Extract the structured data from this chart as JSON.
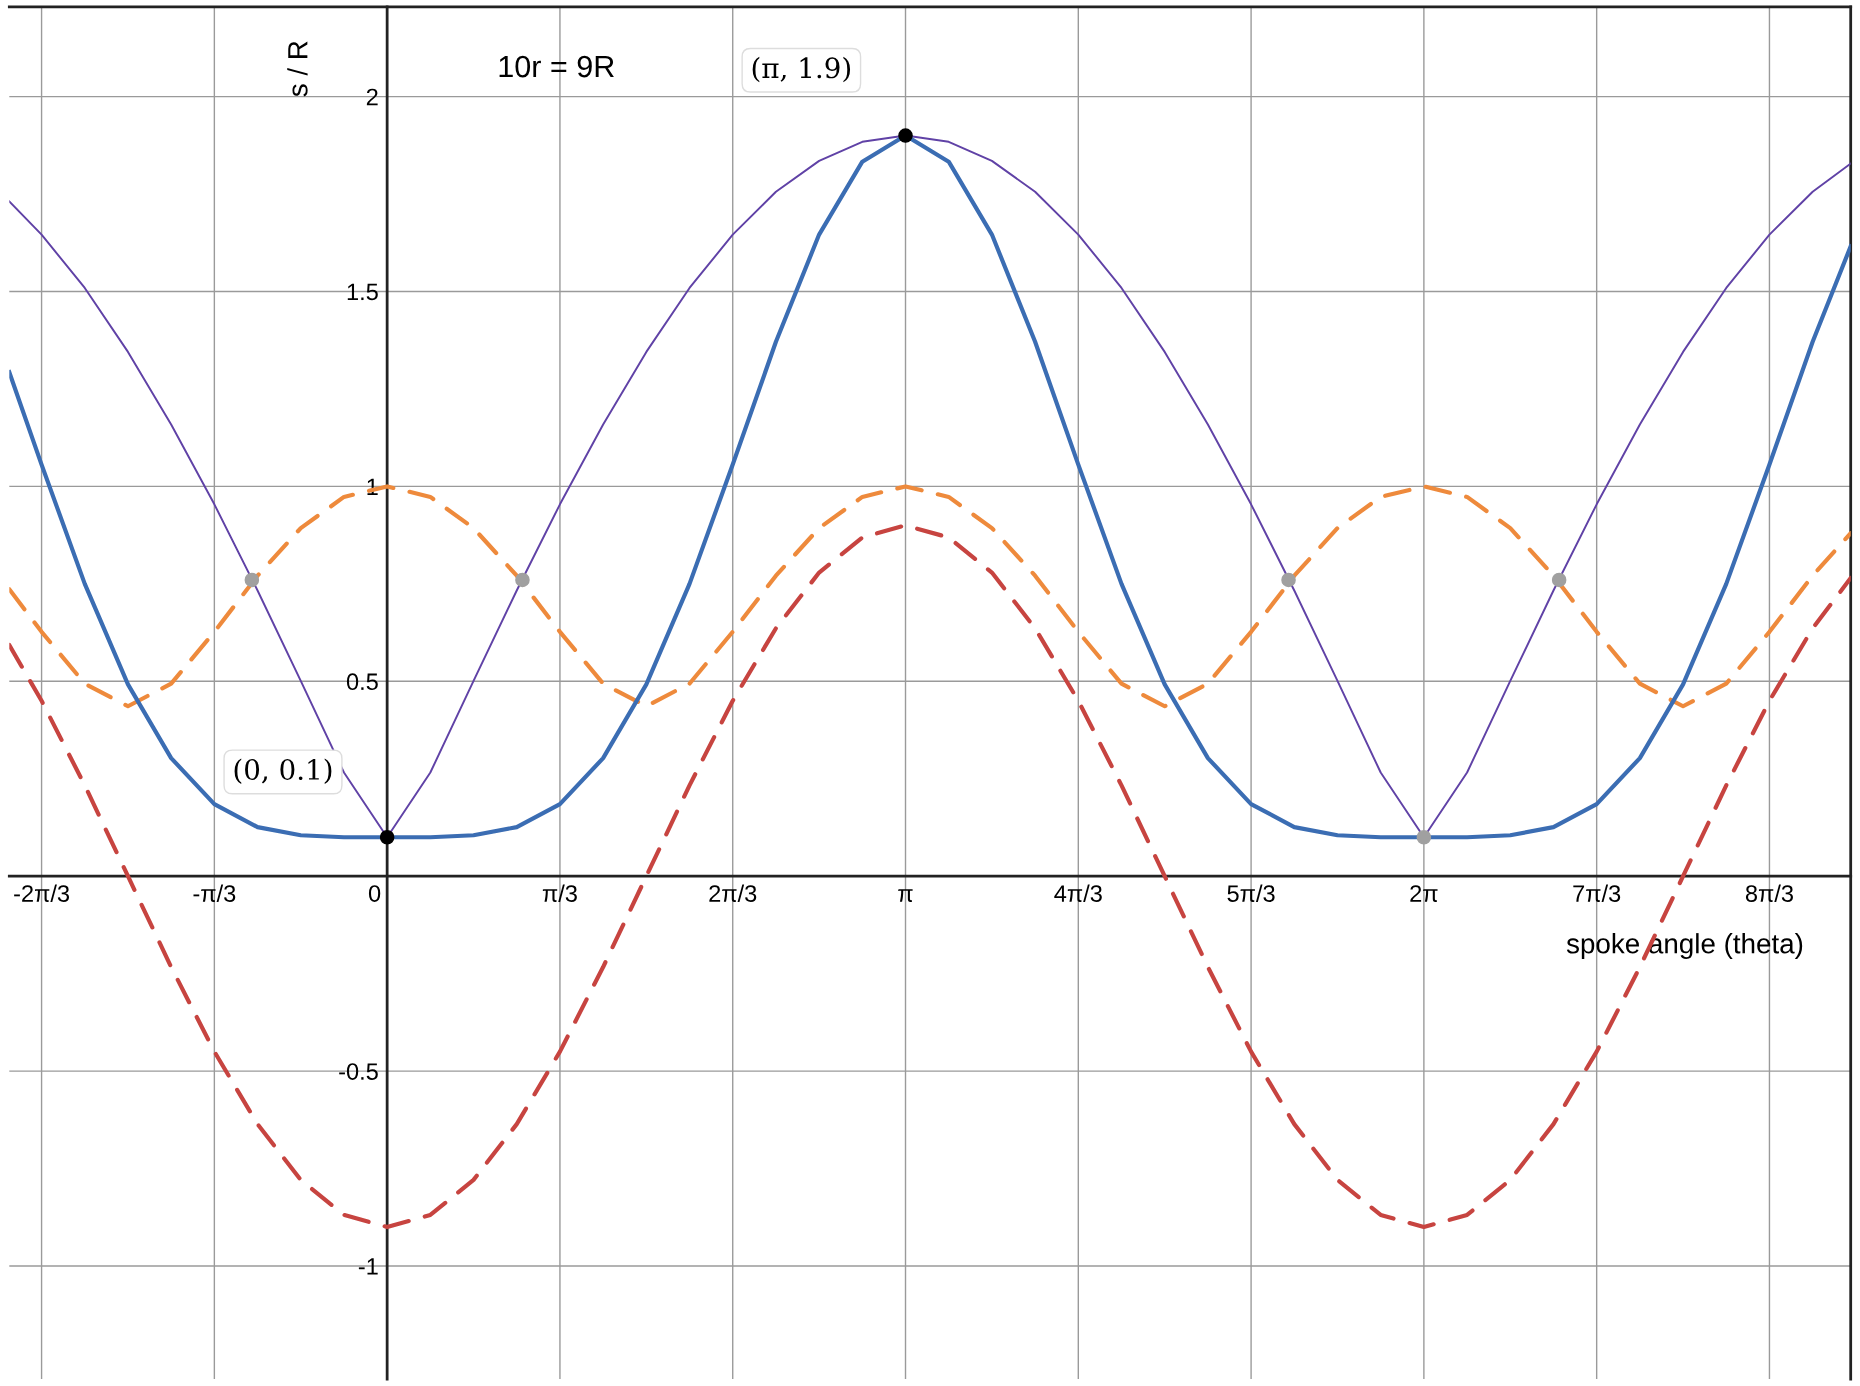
{
  "chart_data": {
    "type": "line",
    "xlabel": "spoke angle (theta)",
    "ylabel": "s / R",
    "xlim": [
      -2.29,
      8.87
    ],
    "ylim": [
      -1.29,
      2.23
    ],
    "xticks": [
      {
        "value": -2.0944,
        "label": "-2π/3"
      },
      {
        "value": -1.0472,
        "label": "-π/3"
      },
      0,
      {
        "value": 1.0472,
        "label": "π/3"
      },
      {
        "value": 2.0944,
        "label": "2π/3"
      },
      {
        "value": 3.1416,
        "label": "π"
      },
      {
        "value": 4.1888,
        "label": "4π/3"
      },
      {
        "value": 5.236,
        "label": "5π/3"
      },
      {
        "value": 6.2832,
        "label": "2π"
      },
      {
        "value": 7.3304,
        "label": "7π/3"
      },
      {
        "value": 8.3776,
        "label": "8π/3"
      }
    ],
    "yticks": [
      -1,
      -0.5,
      0.5,
      1,
      1.5,
      2
    ],
    "grid": true,
    "legend": false,
    "x": [
      -2.29,
      -2.0944,
      -1.8326,
      -1.5708,
      -1.309,
      -1.0472,
      -0.7854,
      -0.5236,
      -0.2618,
      0,
      0.2618,
      0.5236,
      0.7854,
      1.0472,
      1.309,
      1.5708,
      1.8326,
      2.0944,
      2.3562,
      2.618,
      2.8798,
      3.1416,
      3.4034,
      3.6652,
      3.927,
      4.1888,
      4.4506,
      4.7124,
      4.9742,
      5.236,
      5.4978,
      5.7596,
      6.0214,
      6.2832,
      6.545,
      6.8068,
      7.0686,
      7.3304,
      7.5922,
      7.854,
      8.1158,
      8.3776,
      8.6394,
      8.87
    ],
    "series": [
      {
        "color": "#c74440",
        "line_style": "dashed",
        "values": [
          0.593,
          0.45,
          0.233,
          0,
          -0.233,
          -0.45,
          -0.636,
          -0.779,
          -0.869,
          -0.9,
          -0.869,
          -0.779,
          -0.636,
          -0.45,
          -0.233,
          0,
          0.233,
          0.45,
          0.636,
          0.779,
          0.869,
          0.9,
          0.869,
          0.779,
          0.636,
          0.45,
          0.233,
          0,
          -0.233,
          -0.45,
          -0.636,
          -0.779,
          -0.869,
          -0.9,
          -0.869,
          -0.779,
          -0.636,
          -0.45,
          -0.233,
          0,
          0.233,
          0.45,
          0.636,
          0.765
        ]
      },
      {
        "color": "#ee8a3c",
        "line_style": "dashed",
        "values": [
          0.736,
          0.627,
          0.494,
          0.436,
          0.494,
          0.627,
          0.771,
          0.893,
          0.973,
          1,
          0.973,
          0.893,
          0.771,
          0.627,
          0.494,
          0.436,
          0.494,
          0.627,
          0.771,
          0.893,
          0.973,
          1,
          0.973,
          0.893,
          0.771,
          0.627,
          0.494,
          0.436,
          0.494,
          0.627,
          0.771,
          0.893,
          0.973,
          1,
          0.973,
          0.893,
          0.771,
          0.627,
          0.494,
          0.436,
          0.494,
          0.627,
          0.771,
          0.88
        ]
      },
      {
        "color": "#6042a6",
        "line_style": "solid",
        "values": [
          1.731,
          1.646,
          1.509,
          1.345,
          1.159,
          0.954,
          0.733,
          0.501,
          0.266,
          0.1,
          0.266,
          0.501,
          0.733,
          0.954,
          1.159,
          1.345,
          1.509,
          1.646,
          1.756,
          1.835,
          1.884,
          1.9,
          1.884,
          1.835,
          1.756,
          1.646,
          1.509,
          1.345,
          1.159,
          0.954,
          0.733,
          0.501,
          0.266,
          0.1,
          0.266,
          0.501,
          0.733,
          0.954,
          1.159,
          1.345,
          1.509,
          1.646,
          1.756,
          1.828
        ]
      },
      {
        "color": "#3b6db3",
        "line_style": "solid",
        "values": [
          1.293,
          1.056,
          0.75,
          0.492,
          0.303,
          0.185,
          0.126,
          0.105,
          0.1,
          0.1,
          0.1,
          0.105,
          0.126,
          0.185,
          0.303,
          0.492,
          0.75,
          1.056,
          1.371,
          1.646,
          1.833,
          1.9,
          1.833,
          1.646,
          1.371,
          1.056,
          0.75,
          0.492,
          0.303,
          0.185,
          0.126,
          0.105,
          0.1,
          0.1,
          0.1,
          0.105,
          0.126,
          0.185,
          0.303,
          0.492,
          0.75,
          1.056,
          1.371,
          1.616
        ]
      },
      {
        "type": "scatter",
        "color": "#a0a0a0",
        "marker": "circle",
        "x": [
          -0.82,
          0.82,
          5.463,
          7.103,
          6.2832
        ],
        "values": [
          0.76,
          0.76,
          0.76,
          0.76,
          0.1
        ]
      },
      {
        "type": "scatter",
        "color": "#000000",
        "marker": "circle",
        "x": [
          0,
          3.1416
        ],
        "values": [
          0.1,
          1.9
        ]
      }
    ],
    "annotations": [
      "10r = 9R",
      {
        "text": "(0, 0.1)",
        "x": 0,
        "y": 0.1
      },
      {
        "text": "(π, 1.9)",
        "x": 3.1416,
        "y": 1.9
      }
    ]
  }
}
